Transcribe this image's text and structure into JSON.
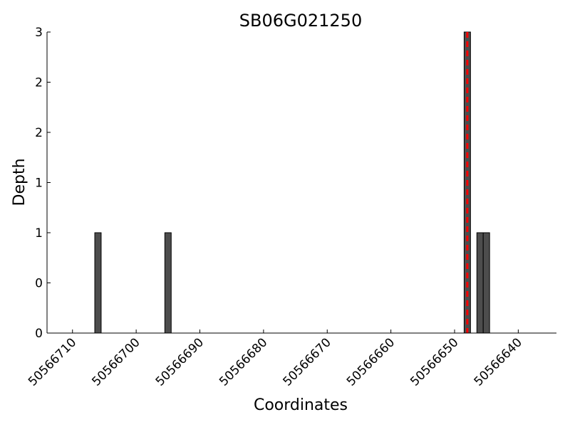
{
  "chart_data": {
    "type": "bar",
    "title": "SB06G021250",
    "xlabel": "Coordinates",
    "ylabel": "Depth",
    "x_reversed": true,
    "xlim": [
      50566714,
      50566634
    ],
    "ylim": [
      0,
      3
    ],
    "x_ticks": [
      50566710,
      50566700,
      50566690,
      50566680,
      50566670,
      50566660,
      50566650,
      50566640
    ],
    "y_ticks": [
      0,
      0.5,
      1,
      1.5,
      2,
      2.5,
      3
    ],
    "y_tick_labels": [
      "0",
      "0",
      "1",
      "1",
      "2",
      "2",
      "3"
    ],
    "bar_width": 1,
    "bar_color": "#4d4d4d",
    "bars": [
      {
        "x": 50566706,
        "value": 1
      },
      {
        "x": 50566695,
        "value": 1
      },
      {
        "x": 50566648,
        "value": 3
      },
      {
        "x": 50566646,
        "value": 1
      },
      {
        "x": 50566645,
        "value": 1
      }
    ],
    "marker_line": {
      "x": 50566648,
      "color": "#ff0000",
      "style": "dashed"
    },
    "grid": false
  }
}
